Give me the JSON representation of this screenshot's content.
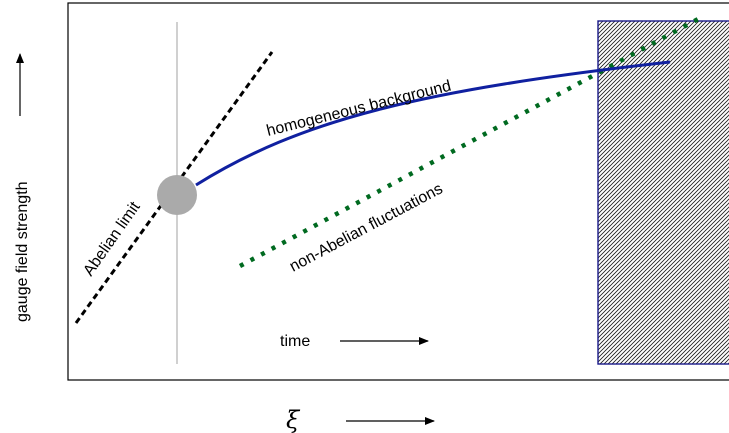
{
  "diagram": {
    "labels": {
      "abelian_limit": "Abelian limit",
      "homogeneous_background": "homogeneous background",
      "non_abelian_fluctuations": "non-Abelian fluctuations",
      "time": "time",
      "y_axis": "gauge field strength",
      "x_axis": "ξ"
    },
    "colors": {
      "frame": "#000000",
      "background_curve": "#1020a0",
      "fluctuations": "#006a20",
      "abelian_limit": "#000000",
      "start_marker": "#aaaaaa",
      "vertical_line": "#b0b0b0",
      "hatch_region": "#1a1a8a"
    }
  }
}
